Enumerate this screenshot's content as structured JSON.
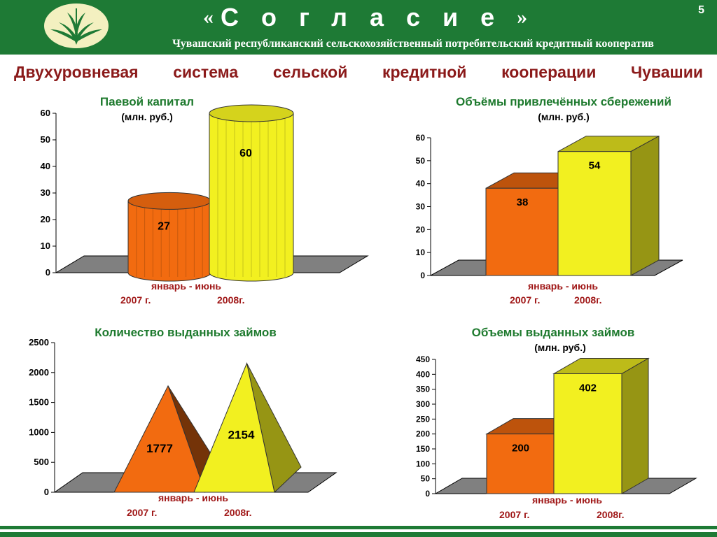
{
  "header": {
    "brand_open_quote": "«",
    "brand_name": "Согласие",
    "brand_close_quote": "»",
    "subtitle": "Чувашский республиканский сельскохозяйственный потребительский кредитный кооператив",
    "page_number": "5"
  },
  "main_title_words": [
    "Двухуровневая",
    "система",
    "сельской",
    "кредитной",
    "кооперации",
    "Чувашии"
  ],
  "colors": {
    "header_bg": "#1e7a35",
    "series_2007": "#f26b10",
    "series_2008": "#f2f020",
    "title_red": "#8b1a1a",
    "chart_title_green": "#1e7a2e"
  },
  "charts": [
    {
      "title": "Паевой капитал",
      "unit": "(млн. руб.)",
      "period": "январь - июнь",
      "label_2007": "2007 г.",
      "label_2008": "2008г."
    },
    {
      "title": "Объёмы привлечённых сбережений",
      "unit": "(млн. руб.)",
      "period": "январь - июнь",
      "label_2007": "2007 г.",
      "label_2008": "2008г."
    },
    {
      "title": "Количество выданных займов",
      "unit": "",
      "period": "январь - июнь",
      "label_2007": "2007 г.",
      "label_2008": "2008г."
    },
    {
      "title": "Объемы  выданных займов",
      "unit": "(млн. руб.)",
      "period": "январь - июнь",
      "label_2007": "2007 г.",
      "label_2008": "2008г."
    }
  ],
  "chart_data": [
    {
      "type": "bar",
      "shape": "cylinder",
      "title": "Паевой капитал",
      "ylabel": "(млн. руб.)",
      "categories": [
        "2007 г.",
        "2008г."
      ],
      "values": [
        27,
        60
      ],
      "ylim": [
        0,
        60
      ],
      "yticks": [
        0,
        10,
        20,
        30,
        40,
        50,
        60
      ],
      "xlabel": "январь - июнь"
    },
    {
      "type": "bar",
      "shape": "box",
      "title": "Объёмы привлечённых сбережений",
      "ylabel": "(млн. руб.)",
      "categories": [
        "2007 г.",
        "2008г."
      ],
      "values": [
        38,
        54
      ],
      "ylim": [
        0,
        60
      ],
      "yticks": [
        0,
        10,
        20,
        30,
        40,
        50,
        60
      ],
      "xlabel": "январь - июнь"
    },
    {
      "type": "bar",
      "shape": "pyramid",
      "title": "Количество выданных займов",
      "categories": [
        "2007 г.",
        "2008г."
      ],
      "values": [
        1777,
        2154
      ],
      "ylim": [
        0,
        2500
      ],
      "yticks": [
        0,
        500,
        1000,
        1500,
        2000,
        2500
      ],
      "xlabel": "январь - июнь"
    },
    {
      "type": "bar",
      "shape": "box",
      "title": "Объемы  выданных займов",
      "ylabel": "(млн. руб.)",
      "categories": [
        "2007 г.",
        "2008г."
      ],
      "values": [
        200,
        402
      ],
      "ylim": [
        0,
        450
      ],
      "yticks": [
        0,
        50,
        100,
        150,
        200,
        250,
        300,
        350,
        400,
        450
      ],
      "xlabel": "январь - июнь"
    }
  ]
}
